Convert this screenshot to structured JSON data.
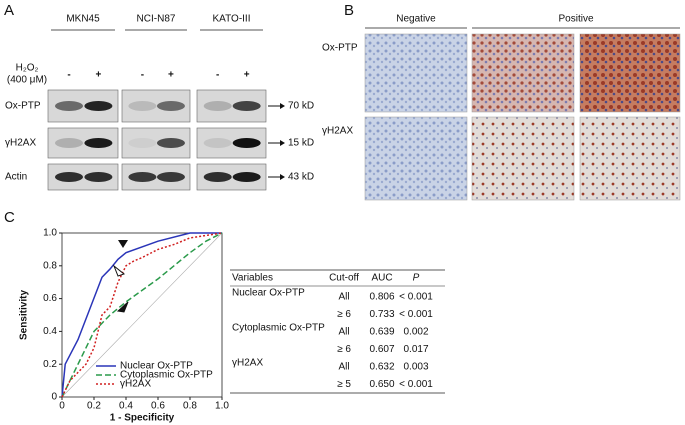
{
  "panel_a": {
    "label": "A",
    "cell_lines": [
      "MKN45",
      "NCI-N87",
      "KATO-III"
    ],
    "treatment": "H₂O₂",
    "treatment_dose": "(400 μM)",
    "lane_signs": [
      "-",
      "+"
    ],
    "rows": [
      "Ox-PTP",
      "γH2AX",
      "Actin"
    ],
    "sizes": [
      "70 kD",
      "15 kD",
      "43 kD"
    ]
  },
  "panel_b": {
    "label": "B",
    "columns": [
      "Negative",
      "Positive"
    ],
    "rows": [
      "Ox-PTP",
      "γH2AX"
    ]
  },
  "panel_c_label": "C",
  "chart_data": {
    "type": "line",
    "xlabel": "1 - Specificity",
    "ylabel": "Sensitivity",
    "xlim": [
      0,
      1
    ],
    "ylim": [
      0,
      1
    ],
    "xticks": [
      0,
      0.2,
      0.4,
      0.6,
      0.8,
      {
        "value": 1,
        "label": "1.0"
      }
    ],
    "yticks": [
      0,
      0.2,
      0.4,
      0.6,
      0.8,
      {
        "value": 1,
        "label": "1.0"
      }
    ],
    "series": [
      {
        "name": "Nuclear Ox-PTP",
        "color": "#2a35b8",
        "dash": "solid",
        "x": [
          0,
          0.02,
          0.1,
          0.25,
          0.3,
          0.35,
          0.4,
          0.6,
          0.8,
          1
        ],
        "values": [
          0,
          0.2,
          0.35,
          0.73,
          0.78,
          0.84,
          0.88,
          0.95,
          1,
          1
        ]
      },
      {
        "name": "Cytoplasmic Ox-PTP",
        "color": "#2a9a4a",
        "dash": "dashed",
        "x": [
          0,
          0.05,
          0.1,
          0.2,
          0.3,
          0.4,
          0.5,
          0.6,
          0.7,
          0.8,
          0.9,
          1
        ],
        "values": [
          0,
          0.1,
          0.2,
          0.4,
          0.5,
          0.58,
          0.65,
          0.72,
          0.8,
          0.88,
          0.95,
          1
        ]
      },
      {
        "name": "γH2AX",
        "color": "#d02020",
        "dash": "dotted",
        "x": [
          0,
          0.05,
          0.1,
          0.15,
          0.2,
          0.25,
          0.3,
          0.35,
          0.4,
          0.45,
          0.5,
          0.6,
          0.7,
          0.8,
          1
        ],
        "values": [
          0,
          0.1,
          0.15,
          0.2,
          0.3,
          0.5,
          0.55,
          0.7,
          0.8,
          0.83,
          0.85,
          0.9,
          0.93,
          0.97,
          1
        ]
      }
    ]
  },
  "table": {
    "header": [
      "Variables",
      "Cut-off",
      "AUC",
      "P"
    ],
    "groups": [
      {
        "variable": "Nuclear Ox-PTP",
        "color": "#2a35b8",
        "rows": [
          {
            "cutoff": "All",
            "auc": "0.806",
            "p": "< 0.001"
          },
          {
            "cutoff": "≥ 6",
            "auc": "0.733",
            "p": "< 0.001"
          }
        ]
      },
      {
        "variable": "Cytoplasmic Ox-PTP",
        "color": "#2a9a4a",
        "rows": [
          {
            "cutoff": "All",
            "auc": "0.639",
            "p": "0.002"
          },
          {
            "cutoff": "≥ 6",
            "auc": "0.607",
            "p": "0.017"
          }
        ]
      },
      {
        "variable": "γH2AX",
        "color": "#d02020",
        "rows": [
          {
            "cutoff": "All",
            "auc": "0.632",
            "p": "0.003"
          },
          {
            "cutoff": "≥ 5",
            "auc": "0.650",
            "p": "< 0.001"
          }
        ]
      }
    ]
  }
}
